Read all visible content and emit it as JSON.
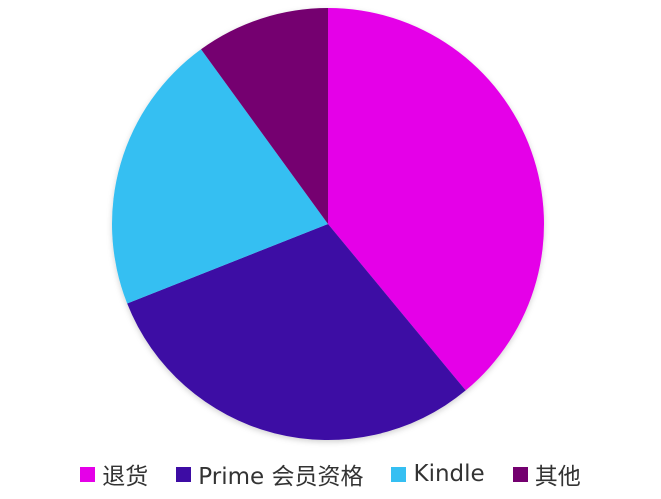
{
  "chart_data": {
    "type": "pie",
    "title": "",
    "start_angle": "top",
    "direction": "clockwise",
    "legend_position": "bottom",
    "slices": [
      {
        "label": "退货",
        "value": 39,
        "color": "#e500e8"
      },
      {
        "label": "Prime 会员资格",
        "value": 30,
        "color": "#3d0ca4"
      },
      {
        "label": "Kindle",
        "value": 21,
        "color": "#35bff2"
      },
      {
        "label": "其他",
        "value": 10,
        "color": "#74006f"
      }
    ]
  }
}
